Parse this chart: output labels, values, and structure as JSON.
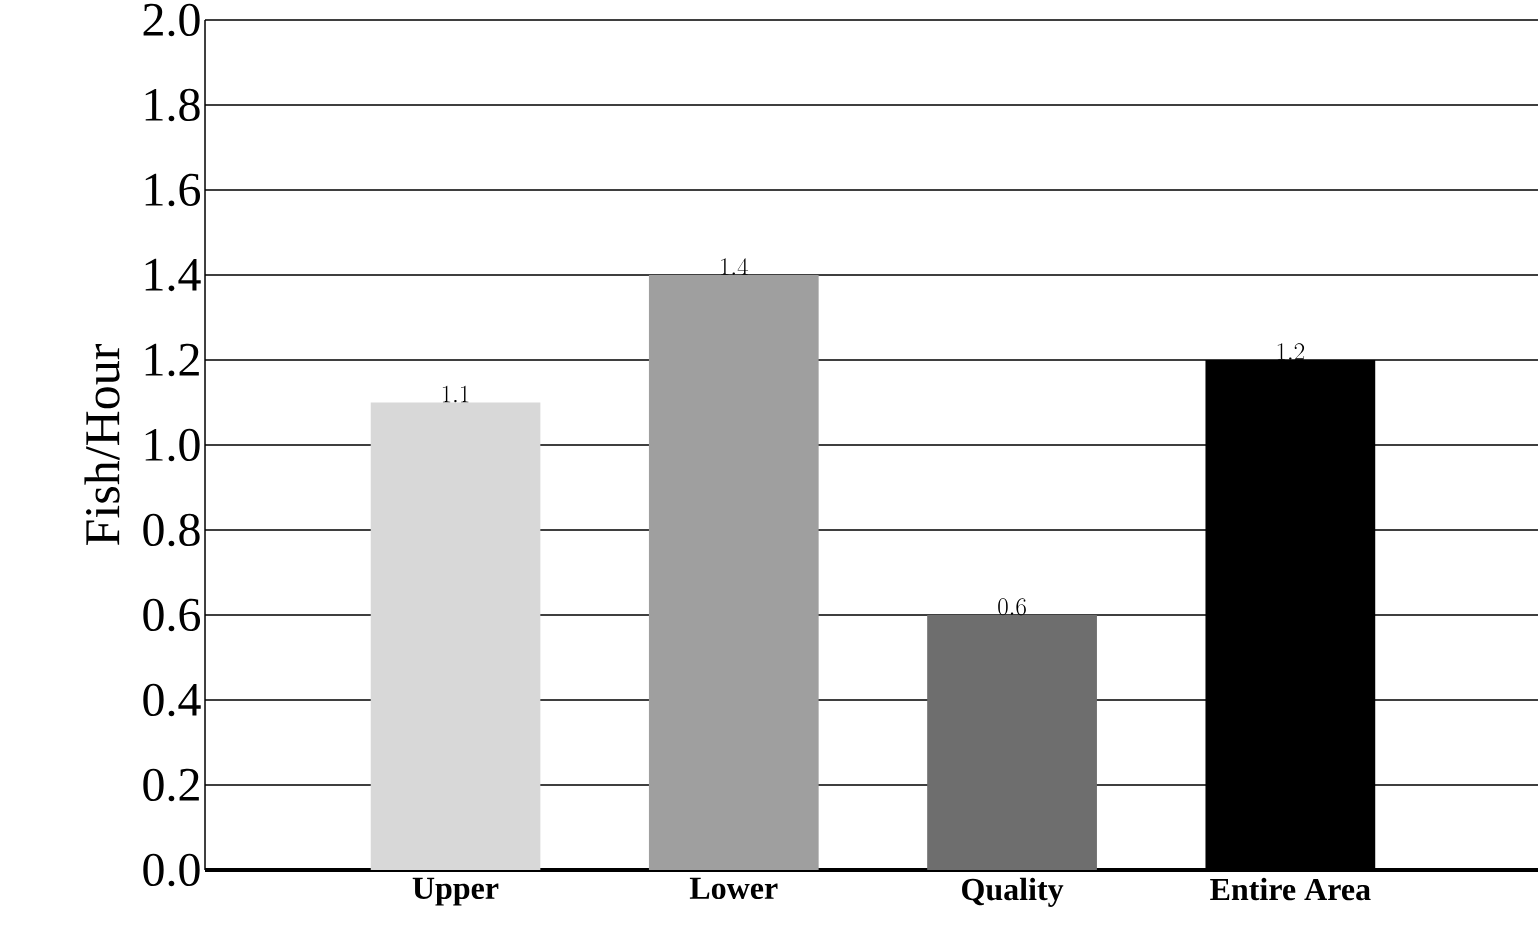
{
  "chart_data": {
    "type": "bar",
    "ylabel": "Fish/Hour",
    "categories": [
      "Upper",
      "Lower",
      "Quality",
      "Entire Area"
    ],
    "values": [
      1.1,
      1.4,
      0.6,
      1.2
    ],
    "colors": [
      "#d8d8d8",
      "#9f9f9f",
      "#6e6e6e",
      "#000000"
    ],
    "ylim": [
      0,
      2.0
    ],
    "yticks": [
      {
        "value": 0,
        "label": "0.0"
      },
      {
        "value": 0.2,
        "label": "0.2"
      },
      {
        "value": 0.4,
        "label": "0.4"
      },
      {
        "value": 0.6,
        "label": "0.6"
      },
      {
        "value": 0.8,
        "label": "0.8"
      },
      {
        "value": 1.0,
        "label": "1.0"
      },
      {
        "value": 1.2,
        "label": "1.2"
      },
      {
        "value": 1.4,
        "label": "1.4"
      },
      {
        "value": 1.6,
        "label": "1.6"
      },
      {
        "value": 1.8,
        "label": "1.8"
      },
      {
        "value": 2.0,
        "label": "2.0"
      }
    ],
    "grid": "y",
    "data_labels": true
  }
}
